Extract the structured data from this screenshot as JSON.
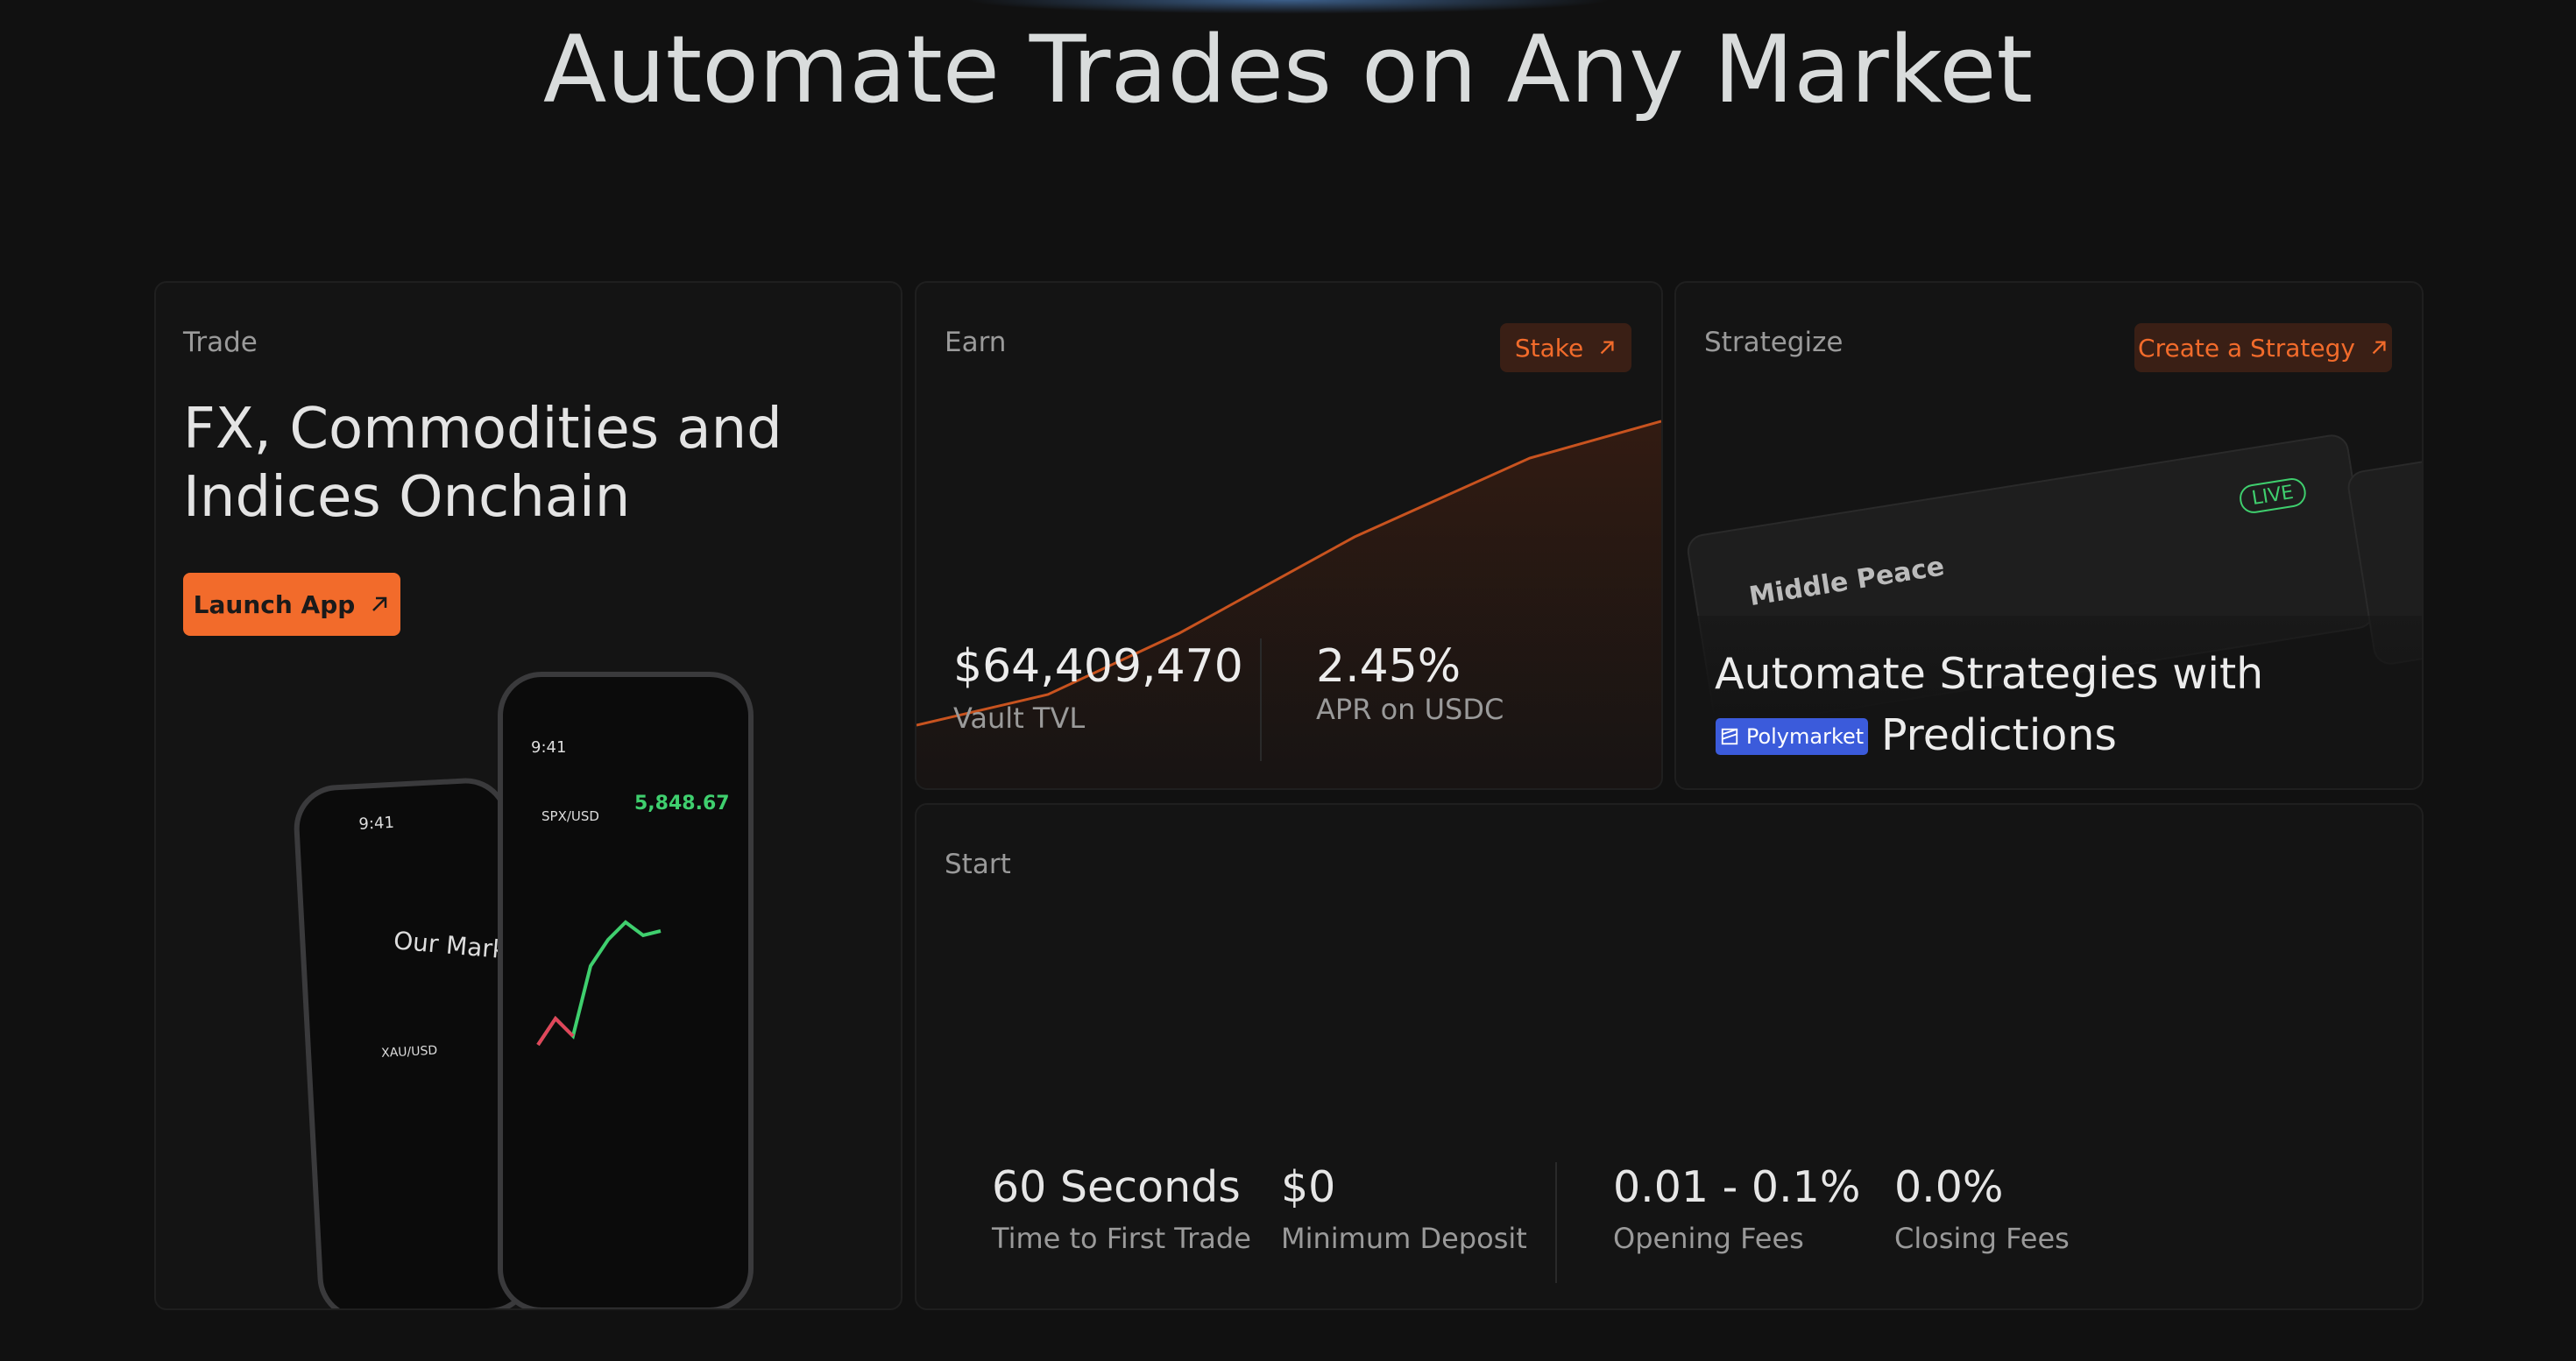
{
  "header": {
    "title": "Automate Trades on Any Market"
  },
  "trade": {
    "label": "Trade",
    "heading": [
      "FX, Commodities and",
      "Indices Onchain"
    ],
    "button": "Launch App",
    "phones": [
      {
        "time": "9:41",
        "heading": "Our Markets",
        "pair": "XAU/USD"
      },
      {
        "time": "9:41",
        "pair": "SPX/USD",
        "price": "5,848.67"
      }
    ]
  },
  "earn": {
    "label": "Earn",
    "button": "Stake",
    "stats": [
      {
        "value": "$64,409,470",
        "label": "Vault TVL"
      },
      {
        "value": "2.45%",
        "label": "APR on USDC"
      }
    ]
  },
  "strategize": {
    "label": "Strategize",
    "button": "Create a Strategy",
    "market": {
      "title": "Middle Peace",
      "status": "LIVE"
    },
    "heading": [
      "Automate Strategies with",
      "Polymarket",
      "Predictions"
    ]
  },
  "start": {
    "label": "Start",
    "stats": [
      {
        "value": "60 Seconds",
        "label": "Time to First Trade"
      },
      {
        "value": "$0",
        "label": "Minimum Deposit"
      },
      {
        "value": "0.01 - 0.1%",
        "label": "Opening Fees"
      },
      {
        "value": "0.0%",
        "label": "Closing Fees"
      }
    ]
  }
}
